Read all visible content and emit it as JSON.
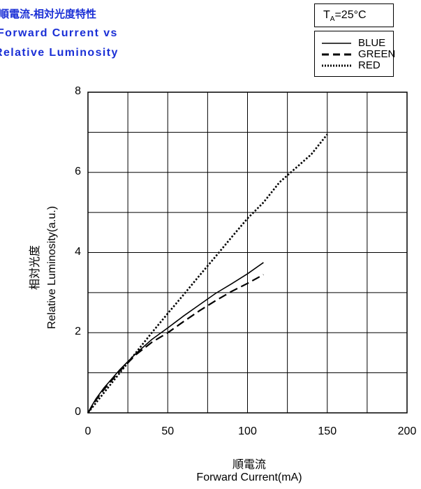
{
  "header": {
    "title_jp": "順電流-相対光度特性",
    "title_en_1": "Forward Current vs",
    "title_en_2": "Relative Luminosity"
  },
  "condition": {
    "label": "T",
    "sub": "A",
    "value": "=25°C"
  },
  "legend": [
    {
      "name": "BLUE",
      "style": "solid"
    },
    {
      "name": "GREEN",
      "style": "dashed"
    },
    {
      "name": "RED",
      "style": "dotted"
    }
  ],
  "colors": {
    "title": "#1a2fd6",
    "lines": "#000000",
    "grid": "#000000"
  },
  "chart_data": {
    "type": "line",
    "xlabel_jp": "順電流",
    "xlabel": "Forward Current(mA)",
    "ylabel_jp": "相対光度",
    "ylabel": "Relative Luminosity(a.u.)",
    "xlim": [
      0,
      200
    ],
    "ylim": [
      0,
      8
    ],
    "x_ticks": [
      0,
      50,
      100,
      150,
      200
    ],
    "y_ticks": [
      0,
      2,
      4,
      6,
      8
    ],
    "grid": true,
    "legend_position": "top-right",
    "series": [
      {
        "name": "BLUE",
        "style": "solid",
        "points": [
          [
            0,
            0
          ],
          [
            2,
            0.15
          ],
          [
            5,
            0.35
          ],
          [
            10,
            0.62
          ],
          [
            15,
            0.85
          ],
          [
            20,
            1.08
          ],
          [
            25,
            1.28
          ],
          [
            30,
            1.48
          ],
          [
            40,
            1.83
          ],
          [
            50,
            2.12
          ],
          [
            60,
            2.42
          ],
          [
            70,
            2.7
          ],
          [
            80,
            2.98
          ],
          [
            90,
            3.22
          ],
          [
            100,
            3.47
          ],
          [
            110,
            3.75
          ]
        ]
      },
      {
        "name": "GREEN",
        "style": "dashed",
        "points": [
          [
            0,
            0
          ],
          [
            2,
            0.12
          ],
          [
            5,
            0.32
          ],
          [
            10,
            0.58
          ],
          [
            15,
            0.82
          ],
          [
            20,
            1.05
          ],
          [
            25,
            1.25
          ],
          [
            30,
            1.45
          ],
          [
            40,
            1.76
          ],
          [
            50,
            2.0
          ],
          [
            60,
            2.28
          ],
          [
            70,
            2.55
          ],
          [
            80,
            2.8
          ],
          [
            90,
            3.03
          ],
          [
            100,
            3.23
          ],
          [
            110,
            3.45
          ]
        ]
      },
      {
        "name": "RED",
        "style": "dotted",
        "points": [
          [
            0,
            0
          ],
          [
            5,
            0.25
          ],
          [
            10,
            0.5
          ],
          [
            20,
            1.0
          ],
          [
            30,
            1.5
          ],
          [
            40,
            2.0
          ],
          [
            50,
            2.48
          ],
          [
            60,
            2.95
          ],
          [
            70,
            3.43
          ],
          [
            80,
            3.9
          ],
          [
            90,
            4.38
          ],
          [
            100,
            4.85
          ],
          [
            110,
            5.25
          ],
          [
            120,
            5.75
          ],
          [
            130,
            6.1
          ],
          [
            140,
            6.45
          ],
          [
            150,
            6.95
          ]
        ]
      }
    ]
  }
}
